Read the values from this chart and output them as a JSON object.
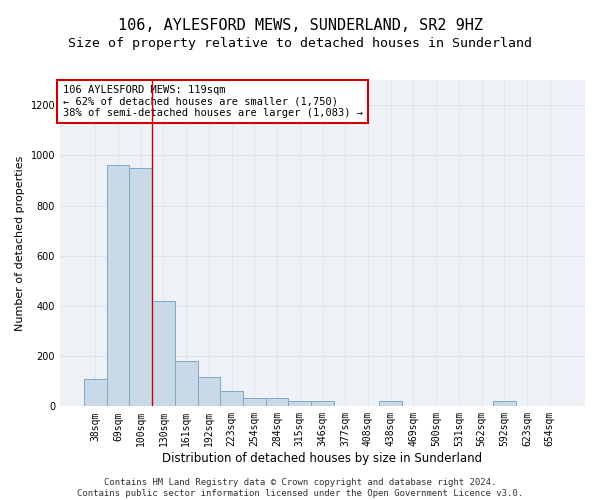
{
  "title": "106, AYLESFORD MEWS, SUNDERLAND, SR2 9HZ",
  "subtitle": "Size of property relative to detached houses in Sunderland",
  "xlabel": "Distribution of detached houses by size in Sunderland",
  "ylabel": "Number of detached properties",
  "categories": [
    "38sqm",
    "69sqm",
    "100sqm",
    "130sqm",
    "161sqm",
    "192sqm",
    "223sqm",
    "254sqm",
    "284sqm",
    "315sqm",
    "346sqm",
    "377sqm",
    "408sqm",
    "438sqm",
    "469sqm",
    "500sqm",
    "531sqm",
    "562sqm",
    "592sqm",
    "623sqm",
    "654sqm"
  ],
  "values": [
    110,
    960,
    950,
    420,
    180,
    115,
    60,
    35,
    35,
    20,
    20,
    0,
    0,
    20,
    0,
    0,
    0,
    0,
    20,
    0,
    0
  ],
  "bar_color": "#c9d9e8",
  "bar_edge_color": "#7aaac8",
  "grid_color": "#dde6ee",
  "bg_color": "#eef2f7",
  "annotation_text": "106 AYLESFORD MEWS: 119sqm\n← 62% of detached houses are smaller (1,750)\n38% of semi-detached houses are larger (1,083) →",
  "annotation_box_color": "#ffffff",
  "annotation_box_edge_color": "#cc0000",
  "vline_x": 2.5,
  "vline_color": "#cc0000",
  "ylim": [
    0,
    1300
  ],
  "yticks": [
    0,
    200,
    400,
    600,
    800,
    1000,
    1200
  ],
  "footer": "Contains HM Land Registry data © Crown copyright and database right 2024.\nContains public sector information licensed under the Open Government Licence v3.0.",
  "title_fontsize": 11,
  "subtitle_fontsize": 9.5,
  "xlabel_fontsize": 8.5,
  "ylabel_fontsize": 8,
  "tick_fontsize": 7,
  "footer_fontsize": 6.5,
  "annotation_fontsize": 7.5
}
